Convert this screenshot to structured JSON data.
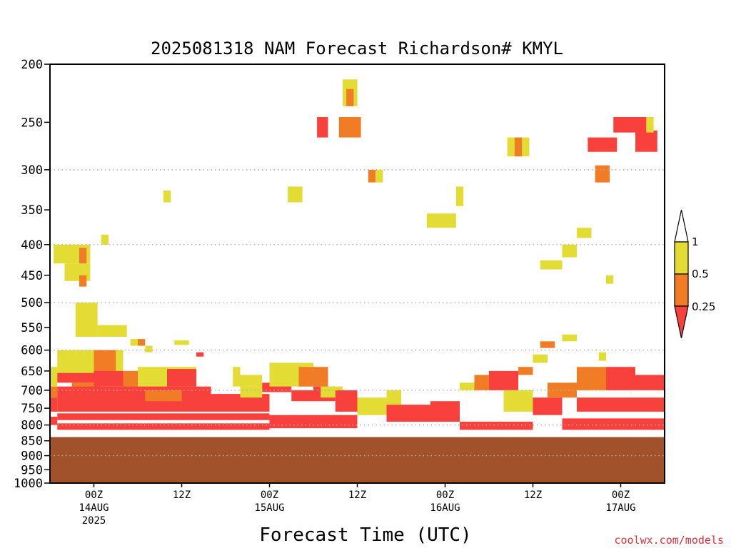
{
  "chart_data": {
    "type": "heatmap",
    "title": "2025081318 NAM Forecast Richardson# KMYL",
    "xlabel": "Forecast Time (UTC)",
    "ylabel": "",
    "y_axis": {
      "scale": "log",
      "inverted": true,
      "ylim": [
        200,
        1000
      ],
      "ticks": [
        200,
        250,
        300,
        350,
        400,
        450,
        500,
        550,
        600,
        650,
        700,
        750,
        800,
        850,
        900,
        950,
        1000
      ],
      "tick_labels": [
        "200",
        "250",
        "300",
        "350",
        "400",
        "450",
        "500",
        "550",
        "600",
        "650",
        "700",
        "750",
        "800",
        "850",
        "900",
        "950",
        "1000"
      ],
      "dotted_gridlines": [
        300,
        400,
        500,
        600,
        700,
        800,
        900,
        1000
      ]
    },
    "x_axis": {
      "unit": "hours from 2025-08-13 18Z",
      "xlim": [
        0,
        84
      ],
      "ticks": [
        {
          "hour": 6,
          "lines": [
            "00Z",
            "14AUG",
            "2025"
          ]
        },
        {
          "hour": 18,
          "lines": [
            "12Z"
          ]
        },
        {
          "hour": 30,
          "lines": [
            "00Z",
            "15AUG"
          ]
        },
        {
          "hour": 42,
          "lines": [
            "12Z"
          ]
        },
        {
          "hour": 54,
          "lines": [
            "00Z",
            "16AUG"
          ]
        },
        {
          "hour": 66,
          "lines": [
            "12Z"
          ]
        },
        {
          "hour": 78,
          "lines": [
            "00Z",
            "17AUG"
          ]
        }
      ]
    },
    "colorbar": {
      "labels": [
        "1",
        "0.5",
        "0.25"
      ],
      "colors": {
        "lt_0.25": "#f8403c",
        "0.25_0.5": "#f07d26",
        "0.5_1": "#e2dc34",
        "gt_1": "#ffffff"
      }
    },
    "ground": {
      "color": "#a1522b",
      "top_p": 838
    },
    "cells": [
      {
        "h": [
          0,
          1
        ],
        "p": [
          640,
          690
        ],
        "c": "y"
      },
      {
        "h": [
          0,
          1
        ],
        "p": [
          690,
          720
        ],
        "c": "o"
      },
      {
        "h": [
          0,
          1
        ],
        "p": [
          720,
          760
        ],
        "c": "r"
      },
      {
        "h": [
          0,
          1
        ],
        "p": [
          775,
          800
        ],
        "c": "r"
      },
      {
        "h": [
          0.5,
          5.5
        ],
        "p": [
          400,
          430
        ],
        "c": "y"
      },
      {
        "h": [
          2,
          5.5
        ],
        "p": [
          430,
          460
        ],
        "c": "y"
      },
      {
        "h": [
          4,
          5
        ],
        "p": [
          405,
          430
        ],
        "c": "o"
      },
      {
        "h": [
          4,
          5
        ],
        "p": [
          450,
          470
        ],
        "c": "o"
      },
      {
        "h": [
          3.5,
          6.5
        ],
        "p": [
          500,
          570
        ],
        "c": "y"
      },
      {
        "h": [
          6.5,
          10.5
        ],
        "p": [
          545,
          570
        ],
        "c": "y"
      },
      {
        "h": [
          7,
          8
        ],
        "p": [
          385,
          400
        ],
        "c": "y"
      },
      {
        "h": [
          1,
          10
        ],
        "p": [
          600,
          660
        ],
        "c": "y"
      },
      {
        "h": [
          6,
          9
        ],
        "p": [
          600,
          660
        ],
        "c": "o"
      },
      {
        "h": [
          1,
          6
        ],
        "p": [
          655,
          680
        ],
        "c": "r"
      },
      {
        "h": [
          3,
          7
        ],
        "p": [
          680,
          700
        ],
        "c": "o"
      },
      {
        "h": [
          6,
          13
        ],
        "p": [
          650,
          690
        ],
        "c": "r"
      },
      {
        "h": [
          10,
          12
        ],
        "p": [
          650,
          700
        ],
        "c": "o"
      },
      {
        "h": [
          12,
          20
        ],
        "p": [
          640,
          700
        ],
        "c": "y"
      },
      {
        "h": [
          16,
          20
        ],
        "p": [
          645,
          690
        ],
        "c": "r"
      },
      {
        "h": [
          1,
          22
        ],
        "p": [
          690,
          760
        ],
        "c": "r"
      },
      {
        "h": [
          13,
          18
        ],
        "p": [
          700,
          730
        ],
        "c": "o"
      },
      {
        "h": [
          22,
          30
        ],
        "p": [
          710,
          760
        ],
        "c": "r"
      },
      {
        "h": [
          1,
          30
        ],
        "p": [
          765,
          785
        ],
        "c": "r"
      },
      {
        "h": [
          1,
          30
        ],
        "p": [
          795,
          815
        ],
        "c": "r"
      },
      {
        "h": [
          11,
          12
        ],
        "p": [
          575,
          590
        ],
        "c": "y"
      },
      {
        "h": [
          12,
          13
        ],
        "p": [
          575,
          590
        ],
        "c": "o"
      },
      {
        "h": [
          13,
          14
        ],
        "p": [
          590,
          605
        ],
        "c": "y"
      },
      {
        "h": [
          17,
          19
        ],
        "p": [
          578,
          588
        ],
        "c": "y"
      },
      {
        "h": [
          20,
          21
        ],
        "p": [
          605,
          615
        ],
        "c": "r"
      },
      {
        "h": [
          15.5,
          16.5
        ],
        "p": [
          325,
          340
        ],
        "c": "y"
      },
      {
        "h": [
          25,
          26
        ],
        "p": [
          640,
          660
        ],
        "c": "y"
      },
      {
        "h": [
          25,
          29
        ],
        "p": [
          660,
          690
        ],
        "c": "y"
      },
      {
        "h": [
          26,
          29
        ],
        "p": [
          690,
          720
        ],
        "c": "y"
      },
      {
        "h": [
          29,
          33
        ],
        "p": [
          680,
          705
        ],
        "c": "r"
      },
      {
        "h": [
          30,
          36
        ],
        "p": [
          630,
          690
        ],
        "c": "y"
      },
      {
        "h": [
          33,
          36
        ],
        "p": [
          700,
          730
        ],
        "c": "r"
      },
      {
        "h": [
          34,
          38
        ],
        "p": [
          640,
          690
        ],
        "c": "o"
      },
      {
        "h": [
          36,
          39
        ],
        "p": [
          690,
          730
        ],
        "c": "r"
      },
      {
        "h": [
          30,
          42
        ],
        "p": [
          770,
          810
        ],
        "c": "r"
      },
      {
        "h": [
          37,
          40
        ],
        "p": [
          690,
          720
        ],
        "c": "y"
      },
      {
        "h": [
          39,
          42
        ],
        "p": [
          700,
          760
        ],
        "c": "r"
      },
      {
        "h": [
          42,
          46
        ],
        "p": [
          720,
          770
        ],
        "c": "y"
      },
      {
        "h": [
          46,
          48
        ],
        "p": [
          700,
          740
        ],
        "c": "y"
      },
      {
        "h": [
          46,
          52
        ],
        "p": [
          740,
          790
        ],
        "c": "r"
      },
      {
        "h": [
          52,
          56
        ],
        "p": [
          730,
          790
        ],
        "c": "r"
      },
      {
        "h": [
          56,
          58
        ],
        "p": [
          680,
          700
        ],
        "c": "y"
      },
      {
        "h": [
          58,
          60
        ],
        "p": [
          660,
          700
        ],
        "c": "o"
      },
      {
        "h": [
          60,
          64
        ],
        "p": [
          650,
          700
        ],
        "c": "r"
      },
      {
        "h": [
          56,
          66
        ],
        "p": [
          790,
          815
        ],
        "c": "r"
      },
      {
        "h": [
          62,
          66
        ],
        "p": [
          700,
          760
        ],
        "c": "y"
      },
      {
        "h": [
          66,
          70
        ],
        "p": [
          720,
          770
        ],
        "c": "r"
      },
      {
        "h": [
          68,
          72
        ],
        "p": [
          680,
          720
        ],
        "c": "o"
      },
      {
        "h": [
          72,
          76
        ],
        "p": [
          640,
          700
        ],
        "c": "o"
      },
      {
        "h": [
          76,
          80
        ],
        "p": [
          640,
          700
        ],
        "c": "r"
      },
      {
        "h": [
          80,
          84
        ],
        "p": [
          660,
          700
        ],
        "c": "r"
      },
      {
        "h": [
          72,
          84
        ],
        "p": [
          720,
          760
        ],
        "c": "r"
      },
      {
        "h": [
          70,
          84
        ],
        "p": [
          780,
          815
        ],
        "c": "r"
      },
      {
        "h": [
          66,
          68
        ],
        "p": [
          610,
          630
        ],
        "c": "y"
      },
      {
        "h": [
          67,
          69
        ],
        "p": [
          580,
          595
        ],
        "c": "o"
      },
      {
        "h": [
          70,
          72
        ],
        "p": [
          565,
          580
        ],
        "c": "y"
      },
      {
        "h": [
          64,
          66
        ],
        "p": [
          640,
          660
        ],
        "c": "o"
      },
      {
        "h": [
          75,
          76
        ],
        "p": [
          605,
          625
        ],
        "c": "y"
      },
      {
        "h": [
          36.5,
          38
        ],
        "p": [
          245,
          265
        ],
        "c": "r"
      },
      {
        "h": [
          39.5,
          42.5
        ],
        "p": [
          245,
          265
        ],
        "c": "o"
      },
      {
        "h": [
          40,
          42
        ],
        "p": [
          212,
          235
        ],
        "c": "y"
      },
      {
        "h": [
          40.5,
          41.5
        ],
        "p": [
          220,
          235
        ],
        "c": "o"
      },
      {
        "h": [
          43.5,
          44.5
        ],
        "p": [
          300,
          315
        ],
        "c": "o"
      },
      {
        "h": [
          44.5,
          45.5
        ],
        "p": [
          300,
          315
        ],
        "c": "y"
      },
      {
        "h": [
          32.5,
          34.5
        ],
        "p": [
          320,
          340
        ],
        "c": "y"
      },
      {
        "h": [
          51.5,
          55.5
        ],
        "p": [
          355,
          375
        ],
        "c": "y"
      },
      {
        "h": [
          55.5,
          56.5
        ],
        "p": [
          320,
          345
        ],
        "c": "y"
      },
      {
        "h": [
          62.5,
          65.5
        ],
        "p": [
          265,
          285
        ],
        "c": "y"
      },
      {
        "h": [
          63.5,
          64.5
        ],
        "p": [
          265,
          285
        ],
        "c": "o"
      },
      {
        "h": [
          73.5,
          77.5
        ],
        "p": [
          265,
          280
        ],
        "c": "r"
      },
      {
        "h": [
          74.5,
          76.5
        ],
        "p": [
          295,
          315
        ],
        "c": "o"
      },
      {
        "h": [
          77,
          81.5
        ],
        "p": [
          245,
          260
        ],
        "c": "r"
      },
      {
        "h": [
          80,
          83
        ],
        "p": [
          258,
          280
        ],
        "c": "r"
      },
      {
        "h": [
          81.5,
          82.5
        ],
        "p": [
          245,
          260
        ],
        "c": "y"
      },
      {
        "h": [
          72,
          74
        ],
        "p": [
          375,
          390
        ],
        "c": "y"
      },
      {
        "h": [
          70,
          72
        ],
        "p": [
          400,
          420
        ],
        "c": "y"
      },
      {
        "h": [
          67,
          70
        ],
        "p": [
          425,
          440
        ],
        "c": "y"
      },
      {
        "h": [
          76,
          77
        ],
        "p": [
          450,
          465
        ],
        "c": "y"
      }
    ]
  },
  "credit": "coolwx.com/models"
}
